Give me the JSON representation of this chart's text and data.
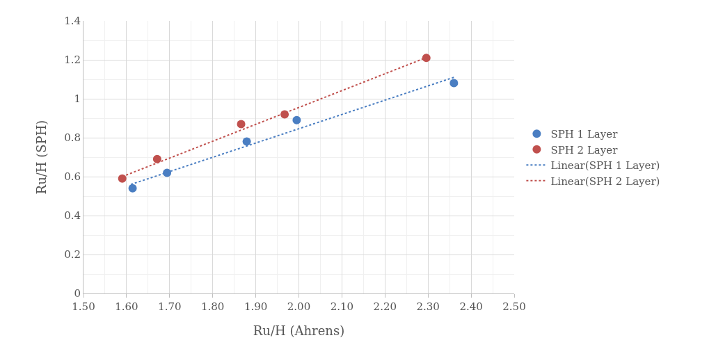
{
  "chart_data": {
    "type": "scatter",
    "xlabel": "Ru/H (Ahrens)",
    "ylabel": "Ru/H (SPH)",
    "series": [
      {
        "name": "SPH 1 Layer",
        "color": "#4a7ec2",
        "marker": "circle",
        "x": [
          1.614,
          1.694,
          1.879,
          1.995,
          2.36
        ],
        "values": [
          0.54,
          0.62,
          0.78,
          0.89,
          1.08
        ]
      },
      {
        "name": "SPH 2 Layer",
        "color": "#c0504d",
        "marker": "circle",
        "x": [
          1.59,
          1.671,
          1.866,
          1.967,
          2.296
        ],
        "values": [
          0.59,
          0.69,
          0.87,
          0.92,
          1.21
        ]
      },
      {
        "name": "Linear(SPH 1 Layer)",
        "color": "#4a7ec2",
        "type": "line",
        "line_style": "dotted",
        "marker": "none",
        "x": [
          1.61,
          2.36
        ],
        "values": [
          0.56,
          1.11
        ]
      },
      {
        "name": "Linear(SPH 2 Layer)",
        "color": "#c0504d",
        "type": "line",
        "line_style": "dotted",
        "marker": "none",
        "x": [
          1.59,
          2.3
        ],
        "values": [
          0.6,
          1.215
        ]
      }
    ],
    "xlim": [
      1.5,
      2.5
    ],
    "xticks": [
      {
        "value": 1.5,
        "label": "1.50"
      },
      {
        "value": 1.6,
        "label": "1.60"
      },
      {
        "value": 1.7,
        "label": "1.70"
      },
      {
        "value": 1.8,
        "label": "1.80"
      },
      {
        "value": 1.9,
        "label": "1.90"
      },
      {
        "value": 2.0,
        "label": "2.00"
      },
      {
        "value": 2.1,
        "label": "2.10"
      },
      {
        "value": 2.2,
        "label": "2.20"
      },
      {
        "value": 2.3,
        "label": "2.30"
      },
      {
        "value": 2.4,
        "label": "2.40"
      },
      {
        "value": 2.5,
        "label": "2.50"
      }
    ],
    "ylim": [
      0,
      1.4
    ],
    "yticks": [
      0,
      0.2,
      0.4,
      0.6,
      0.8,
      1,
      1.2,
      1.4
    ],
    "grid": true,
    "legend": "right"
  }
}
